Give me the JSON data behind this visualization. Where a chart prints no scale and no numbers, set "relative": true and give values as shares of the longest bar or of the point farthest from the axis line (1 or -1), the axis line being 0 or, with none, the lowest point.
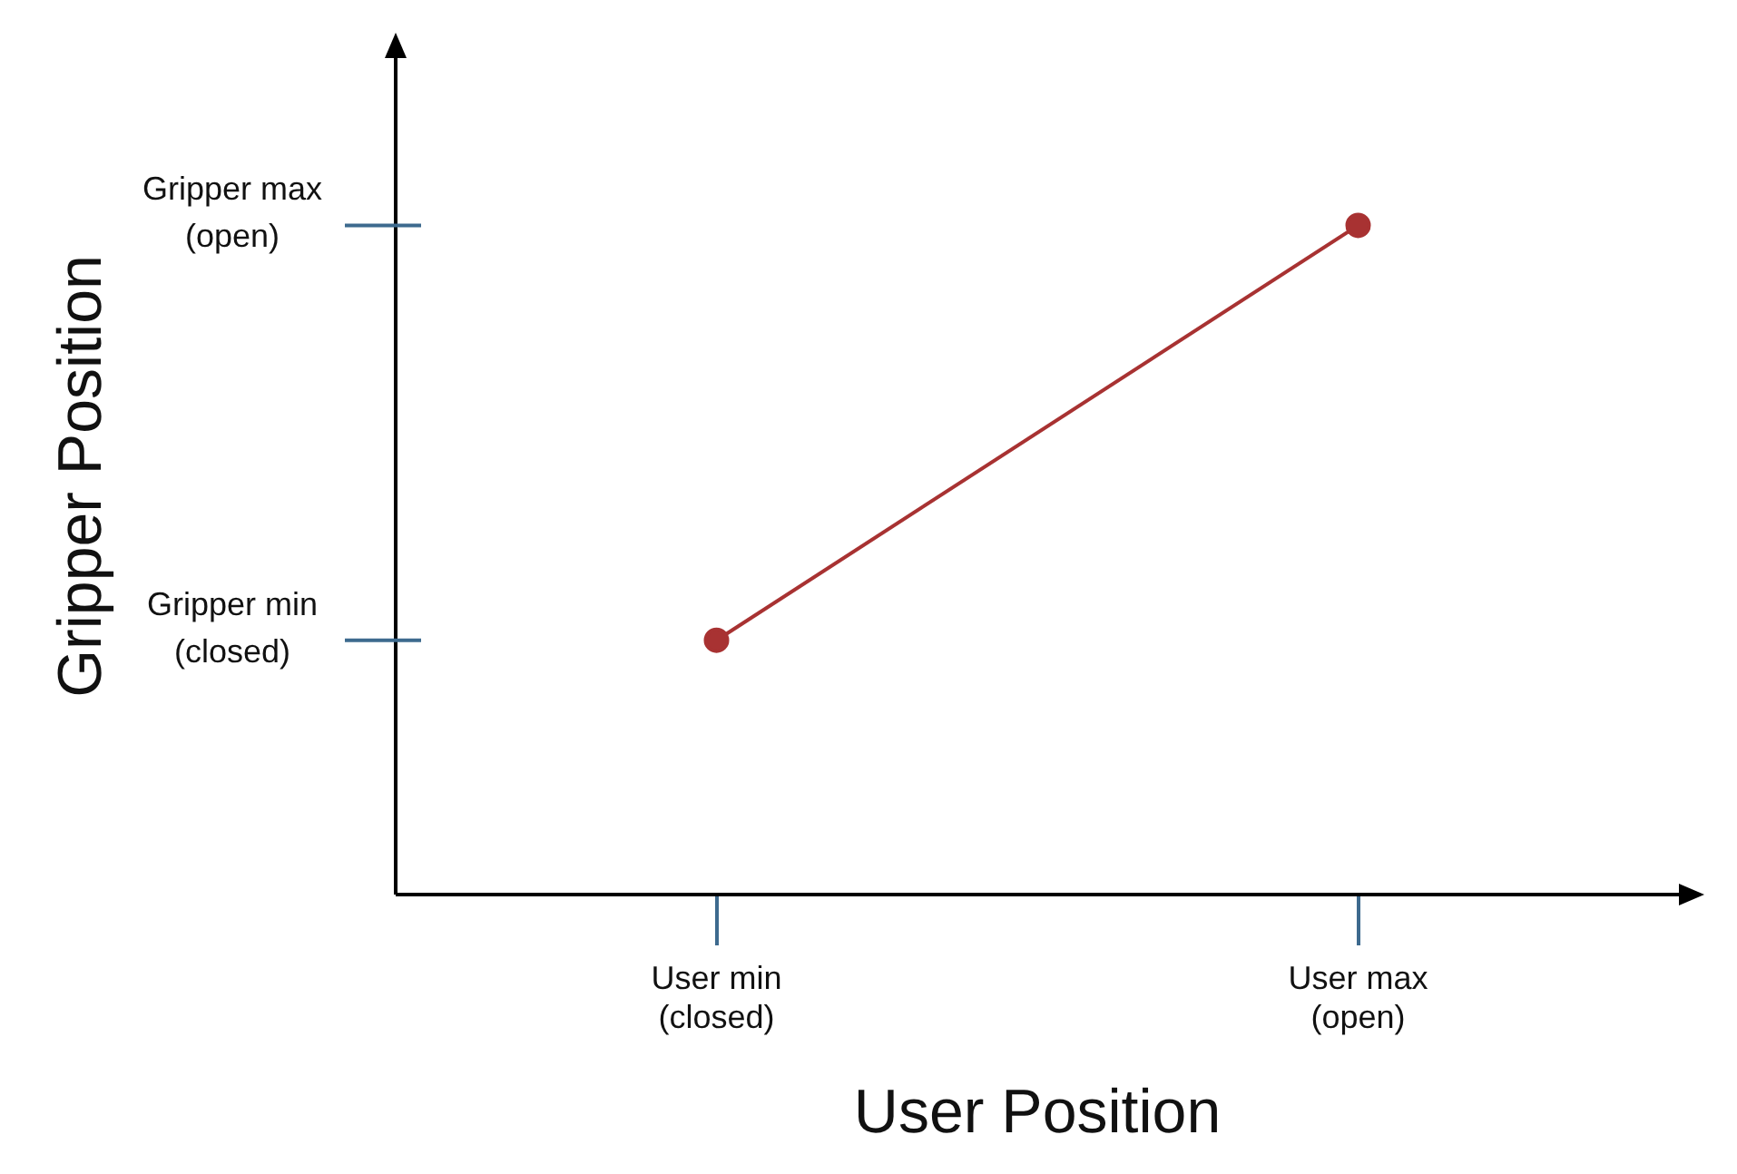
{
  "chart_data": {
    "type": "line",
    "xlabel": "User Position",
    "ylabel": "Gripper Position",
    "categories": [
      "User min\n(closed)",
      "User max\n(open)"
    ],
    "series": [
      {
        "color": "#a83232",
        "values": [
          0.38,
          1
        ]
      }
    ],
    "relative": true,
    "ref_lines": [
      {
        "axis": "y",
        "value": 0.38,
        "label": "Gripper min\n(closed)",
        "color": "#3d6a8e"
      },
      {
        "axis": "y",
        "value": 1,
        "label": "Gripper max\n(open)",
        "color": "#3d6a8e"
      }
    ],
    "grid": false,
    "legend": false,
    "marker": "circle",
    "line_style": "solid"
  }
}
